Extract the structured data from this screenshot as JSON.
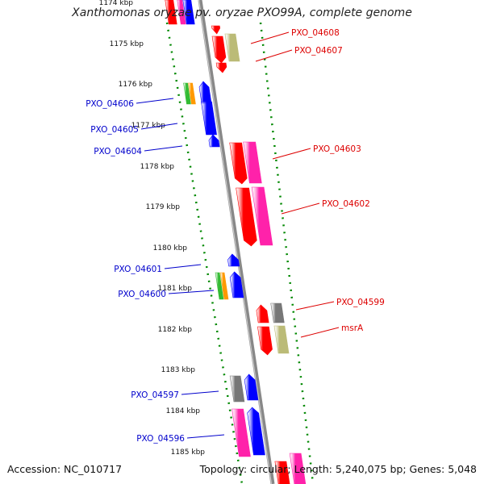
{
  "title": "Xanthomonas oryzae pv. oryzae PXO99A, complete genome",
  "footer": {
    "accession": "Accession: NC_010717",
    "summary": "Topology: circular; Length: 5,240,075 bp; Genes: 5,048"
  },
  "colors": {
    "forward_label": "#dd0000",
    "reverse_label": "#0000cc",
    "tick": "#008800",
    "backbone": "#888888"
  },
  "ticks": [
    "1174 kbp",
    "1175 kbp",
    "1176 kbp",
    "1177 kbp",
    "1178 kbp",
    "1179 kbp",
    "1180 kbp",
    "1181 kbp",
    "1182 kbp",
    "1183 kbp",
    "1184 kbp",
    "1185 kbp"
  ],
  "labels_right": [
    "PXO_04608",
    "PXO_04607",
    "PXO_04603",
    "PXO_04602",
    "PXO_04599",
    "msrA"
  ],
  "labels_left": [
    "PXO_04606",
    "PXO_04605",
    "PXO_04604",
    "PXO_04601",
    "PXO_04600",
    "PXO_04597",
    "PXO_04596"
  ],
  "legend_colors": {
    "cds": "#ff0000",
    "gene": "#0000ff",
    "rrna": "#33bb33",
    "trna": "#ff9900",
    "misc": "#ff22aa",
    "other": "#bbbb77",
    "grey": "#777777"
  }
}
